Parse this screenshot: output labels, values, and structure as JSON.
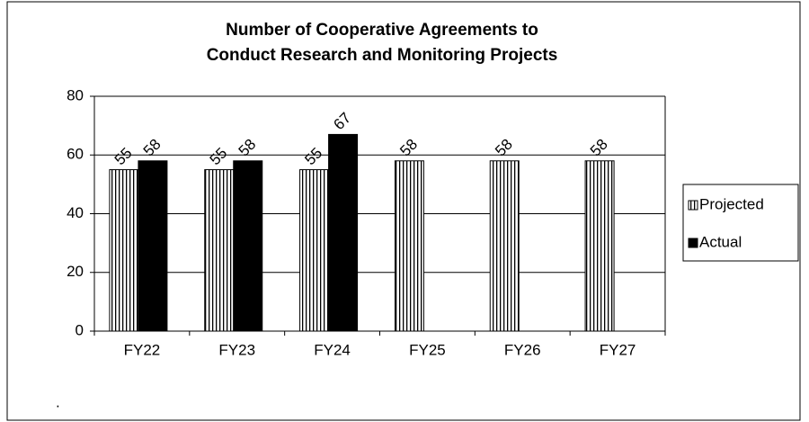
{
  "chart_data": {
    "type": "bar",
    "title": [
      "Number of Cooperative Agreements to",
      "Conduct Research and Monitoring Projects"
    ],
    "categories": [
      "FY22",
      "FY23",
      "FY24",
      "FY25",
      "FY26",
      "FY27"
    ],
    "series": [
      {
        "name": "Projected",
        "color": "#ffffff",
        "pattern": "vertical-stripes",
        "values": [
          55,
          55,
          55,
          58,
          58,
          58
        ]
      },
      {
        "name": "Actual",
        "color": "#000000",
        "values": [
          58,
          58,
          67,
          null,
          null,
          null
        ]
      }
    ],
    "ylim": [
      0,
      80
    ],
    "yticks": [
      0,
      20,
      40,
      60,
      80
    ],
    "grid": true,
    "legend": "right",
    "footnote": "."
  }
}
